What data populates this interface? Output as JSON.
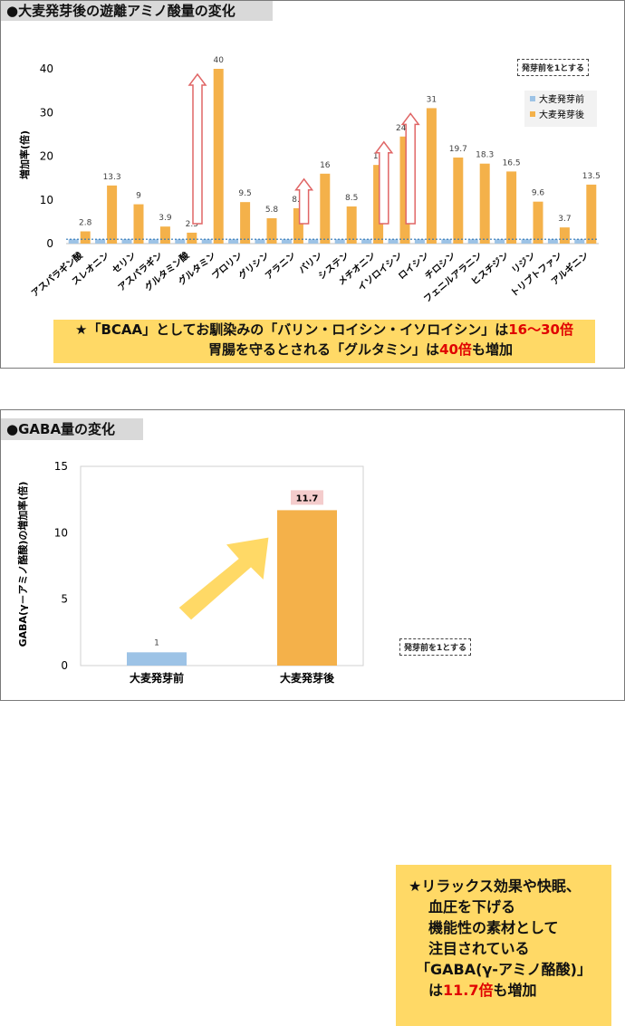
{
  "panel1": {
    "title": "●大麦発芽後の遊離アミノ酸量の変化",
    "note": "発芽前を1とする",
    "callout_line1_a": "★「BCAA」としてお馴染みの「バリン・ロイシン・イソロイシン」は",
    "callout_line1_b": "16～30倍",
    "callout_line2_a": "胃腸を守るとされる「グルタミン」は",
    "callout_line2_b": "40倍",
    "callout_line2_c": "も増加"
  },
  "panel2": {
    "title": "●GABA量の変化",
    "note": "発芽前を1とする",
    "callout_lines": [
      "★リラックス効果や快眠、",
      "血圧を下げる",
      "機能性の素材として",
      "注目されている",
      "「GABA(γ-アミノ酪酸)」"
    ],
    "callout_last_a": "は",
    "callout_last_b": "11.7倍",
    "callout_last_c": "も増加"
  },
  "colors": {
    "before": "#9dc3e6",
    "after": "#f4b14a",
    "highlight": "#e00000",
    "callout": "#ffd966"
  },
  "chart_data": [
    {
      "type": "bar",
      "title": "",
      "ylabel": "増加率(倍)",
      "ylim": [
        0,
        40
      ],
      "yticks": [
        0,
        10,
        20,
        30,
        40
      ],
      "categories": [
        "アスパラギン酸",
        "スレオニン",
        "セリン",
        "アスパラギン",
        "グルタミン酸",
        "グルタミン",
        "プロリン",
        "グリシン",
        "アラニン",
        "バリン",
        "システン",
        "メチオニン",
        "イソロイシン",
        "ロイシン",
        "チロシン",
        "フェニルアラニン",
        "ヒスチジン",
        "リジン",
        "トリプトファン",
        "アルギニン"
      ],
      "series": [
        {
          "name": "大麦発芽前",
          "values": [
            1,
            1,
            1,
            1,
            1,
            1,
            1,
            1,
            1,
            1,
            1,
            1,
            1,
            1,
            1,
            1,
            1,
            1,
            1,
            1
          ]
        },
        {
          "name": "大麦発芽後",
          "values": [
            2.8,
            13.3,
            9,
            3.9,
            2.5,
            40,
            9.5,
            5.8,
            8.1,
            16,
            8.5,
            18,
            24.5,
            31,
            19.7,
            18.3,
            16.5,
            9.6,
            3.7,
            13.5
          ]
        }
      ],
      "data_labels": [
        "2.8",
        "13.3",
        "9",
        "3.9",
        "2.5",
        "40",
        "9.5",
        "5.8",
        "8.1",
        "16",
        "8.5",
        "18",
        "24.5",
        "31",
        "19.7",
        "18.3",
        "16.5",
        "9.6",
        "3.7",
        "13.5"
      ],
      "highlighted_categories": [
        "グルタミン",
        "バリン",
        "イソロイシン",
        "ロイシン"
      ],
      "legend": "top-right",
      "grid": false
    },
    {
      "type": "bar",
      "title": "",
      "ylabel": "GABA(γ－アミノ酪酸)の増加率(倍)",
      "ylim": [
        0,
        15
      ],
      "yticks": [
        0,
        5,
        10,
        15
      ],
      "categories": [
        "大麦発芽前",
        "大麦発芽後"
      ],
      "values": [
        1,
        11.7
      ],
      "data_labels": [
        "1",
        "11.7"
      ],
      "grid": false
    }
  ]
}
